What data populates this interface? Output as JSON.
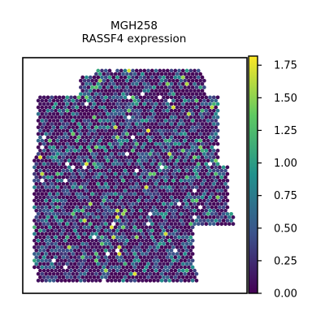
{
  "chart_data": {
    "type": "scatter",
    "title": "MGH258",
    "subtitle": "RASSF4 expression",
    "xlabel": "",
    "ylabel": "",
    "colormap": "viridis",
    "colormap_stops": [
      "#440154",
      "#3b528b",
      "#21918c",
      "#5ec962",
      "#fde725"
    ],
    "colorbar": {
      "vmin": 0.0,
      "vmax": 1.82,
      "ticks": [
        0.0,
        0.25,
        0.5,
        0.75,
        1.0,
        1.25,
        1.5,
        1.75
      ],
      "tick_labels": [
        "0.00",
        "0.25",
        "0.50",
        "0.75",
        "1.00",
        "1.25",
        "1.50",
        "1.75"
      ]
    },
    "grid": false,
    "legend": "none",
    "spots": {
      "description_of_values": "Spatial transcriptomics spots of sample MGH258; most spots have expression near 0, a fraction range 0.25–1.0, and a few sparse spots reach 1.25–1.8.",
      "distribution": [
        {
          "range": [
            0.0,
            0.1
          ],
          "share": 0.55
        },
        {
          "range": [
            0.25,
            0.6
          ],
          "share": 0.3
        },
        {
          "range": [
            0.6,
            1.0
          ],
          "share": 0.11
        },
        {
          "range": [
            1.0,
            1.4
          ],
          "share": 0.025
        },
        {
          "range": [
            1.4,
            1.8
          ],
          "share": 0.015
        }
      ]
    }
  }
}
